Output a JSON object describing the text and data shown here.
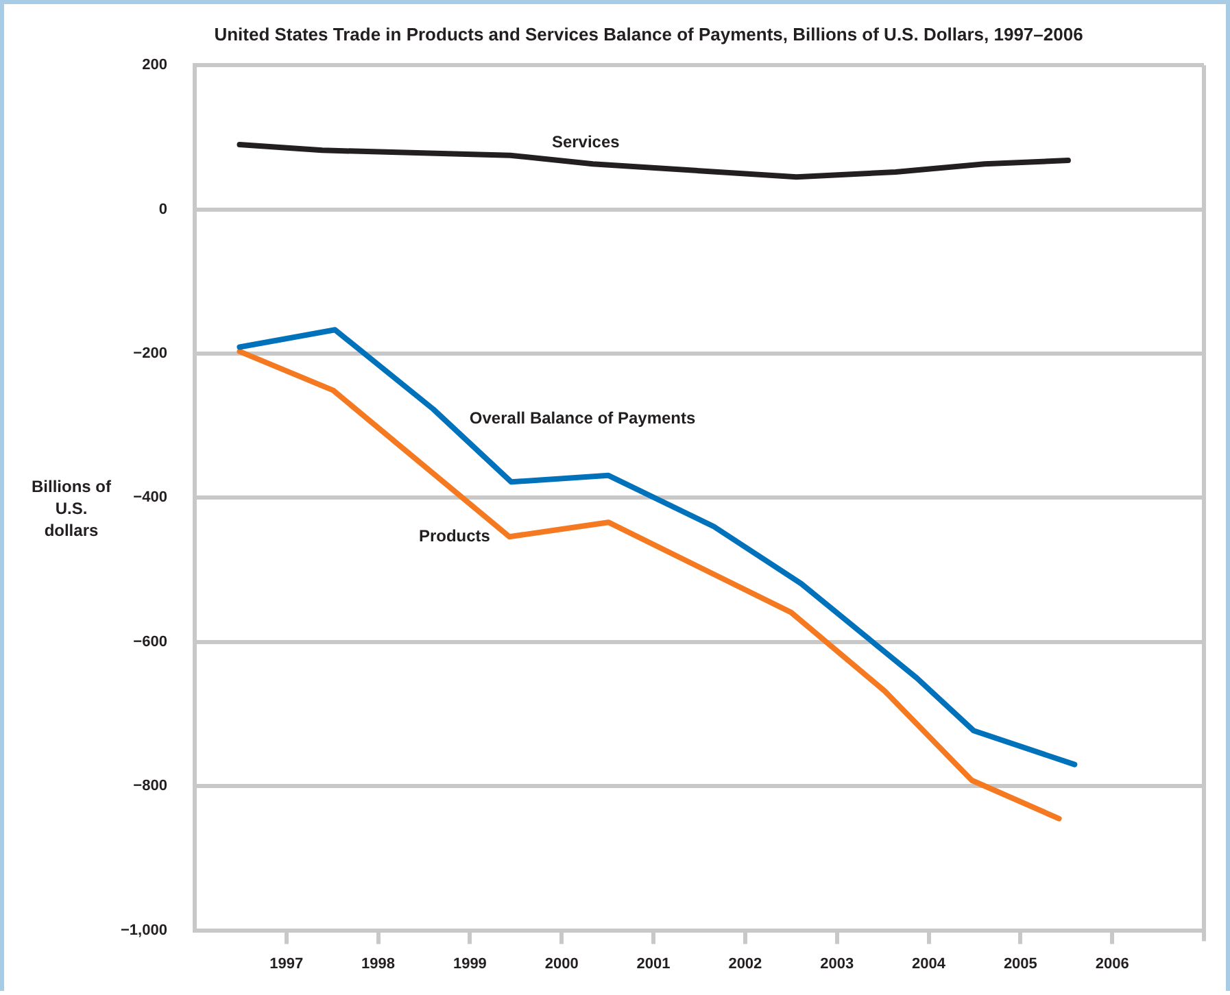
{
  "chart_data": {
    "type": "line",
    "title": "United States Trade in Products and Services Balance of Payments, Billions of U.S. Dollars, 1997–2006",
    "ylabel": "Billions of U.S. dollars",
    "xlim": [
      1996,
      2007
    ],
    "xticks": [
      1997,
      1998,
      1999,
      2000,
      2001,
      2002,
      2003,
      2004,
      2005,
      2006
    ],
    "ylim": [
      -1000,
      200
    ],
    "yticks": [
      {
        "value": -1000,
        "label": "−1,000"
      },
      {
        "value": -800,
        "label": "−800"
      },
      {
        "value": -600,
        "label": "−600"
      },
      {
        "value": -400,
        "label": "−400"
      },
      {
        "value": -200,
        "label": "−200"
      },
      0,
      200
    ],
    "grid": "y",
    "legend": false,
    "marker": "none",
    "line_style": "solid",
    "series": [
      {
        "name": "Services",
        "color": "#231f20",
        "x": [
          1996.49,
          1997.39,
          1999.44,
          2000.34,
          2002.56,
          2003.64,
          2004.61,
          2005.52
        ],
        "values": [
          90,
          82,
          75,
          63,
          45,
          52,
          63,
          68
        ]
      },
      {
        "name": "Overall Balance of Payments",
        "color": "#0072bc",
        "x": [
          1996.49,
          1997.53,
          1998.6,
          1999.45,
          2000.51,
          2001.66,
          2002.61,
          2003.87,
          2004.49,
          2005.59
        ],
        "values": [
          -191,
          -167,
          -277,
          -378,
          -369,
          -440,
          -519,
          -650,
          -723,
          -770
        ]
      },
      {
        "name": "Products",
        "color": "#f47920",
        "x": [
          1996.49,
          1997.51,
          1999.43,
          2000.51,
          2002.5,
          2003.52,
          2004.47,
          2005.42
        ],
        "values": [
          -197,
          -251,
          -454,
          -434,
          -559,
          -668,
          -792,
          -845
        ]
      }
    ]
  }
}
